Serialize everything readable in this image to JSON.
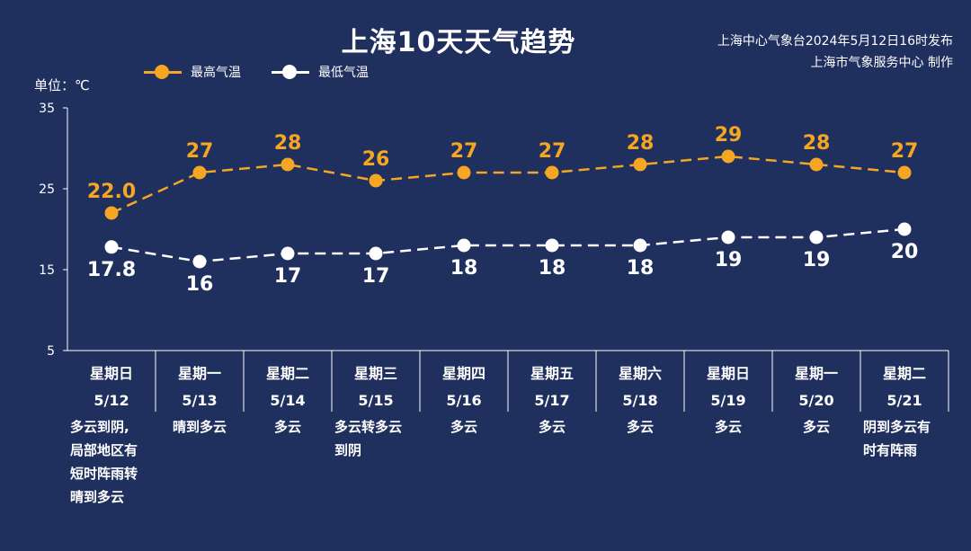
{
  "title": "上海10天天气趋势",
  "source": [
    "上海中心气象台2024年5月12日16时发布",
    "上海市气象服务中心 制作"
  ],
  "unit_label": "单位：℃",
  "colors": {
    "high": "#f5a623",
    "low": "#ffffff",
    "background": "#1f2f5e",
    "axis": "#ffffff"
  },
  "chart_data": {
    "type": "line",
    "ylim": [
      5,
      35
    ],
    "yticks": [
      5,
      15,
      25,
      35
    ],
    "grid": false,
    "legend_position": "top-left",
    "categories": [
      {
        "day": "星期日",
        "date": "5/12"
      },
      {
        "day": "星期一",
        "date": "5/13"
      },
      {
        "day": "星期二",
        "date": "5/14"
      },
      {
        "day": "星期三",
        "date": "5/15"
      },
      {
        "day": "星期四",
        "date": "5/16"
      },
      {
        "day": "星期五",
        "date": "5/17"
      },
      {
        "day": "星期六",
        "date": "5/18"
      },
      {
        "day": "星期日",
        "date": "5/19"
      },
      {
        "day": "星期一",
        "date": "5/20"
      },
      {
        "day": "星期二",
        "date": "5/21"
      }
    ],
    "series": [
      {
        "name": "最高气温",
        "values": [
          22.0,
          27,
          28,
          26,
          27,
          27,
          28,
          29,
          28,
          27
        ],
        "labels": [
          "22.0",
          "27",
          "28",
          "26",
          "27",
          "27",
          "28",
          "29",
          "28",
          "27"
        ]
      },
      {
        "name": "最低气温",
        "values": [
          17.8,
          16,
          17,
          17,
          18,
          18,
          18,
          19,
          19,
          20
        ],
        "labels": [
          "17.8",
          "16",
          "17",
          "17",
          "18",
          "18",
          "18",
          "19",
          "19",
          "20"
        ]
      }
    ],
    "weather": [
      [
        "多云到阴,",
        "局部地区有",
        "短时阵雨转",
        "晴到多云"
      ],
      [
        "晴到多云"
      ],
      [
        "多云"
      ],
      [
        "多云转多云",
        "到阴"
      ],
      [
        "多云"
      ],
      [
        "多云"
      ],
      [
        "多云"
      ],
      [
        "多云"
      ],
      [
        "多云"
      ],
      [
        "阴到多云有",
        "时有阵雨"
      ]
    ]
  }
}
